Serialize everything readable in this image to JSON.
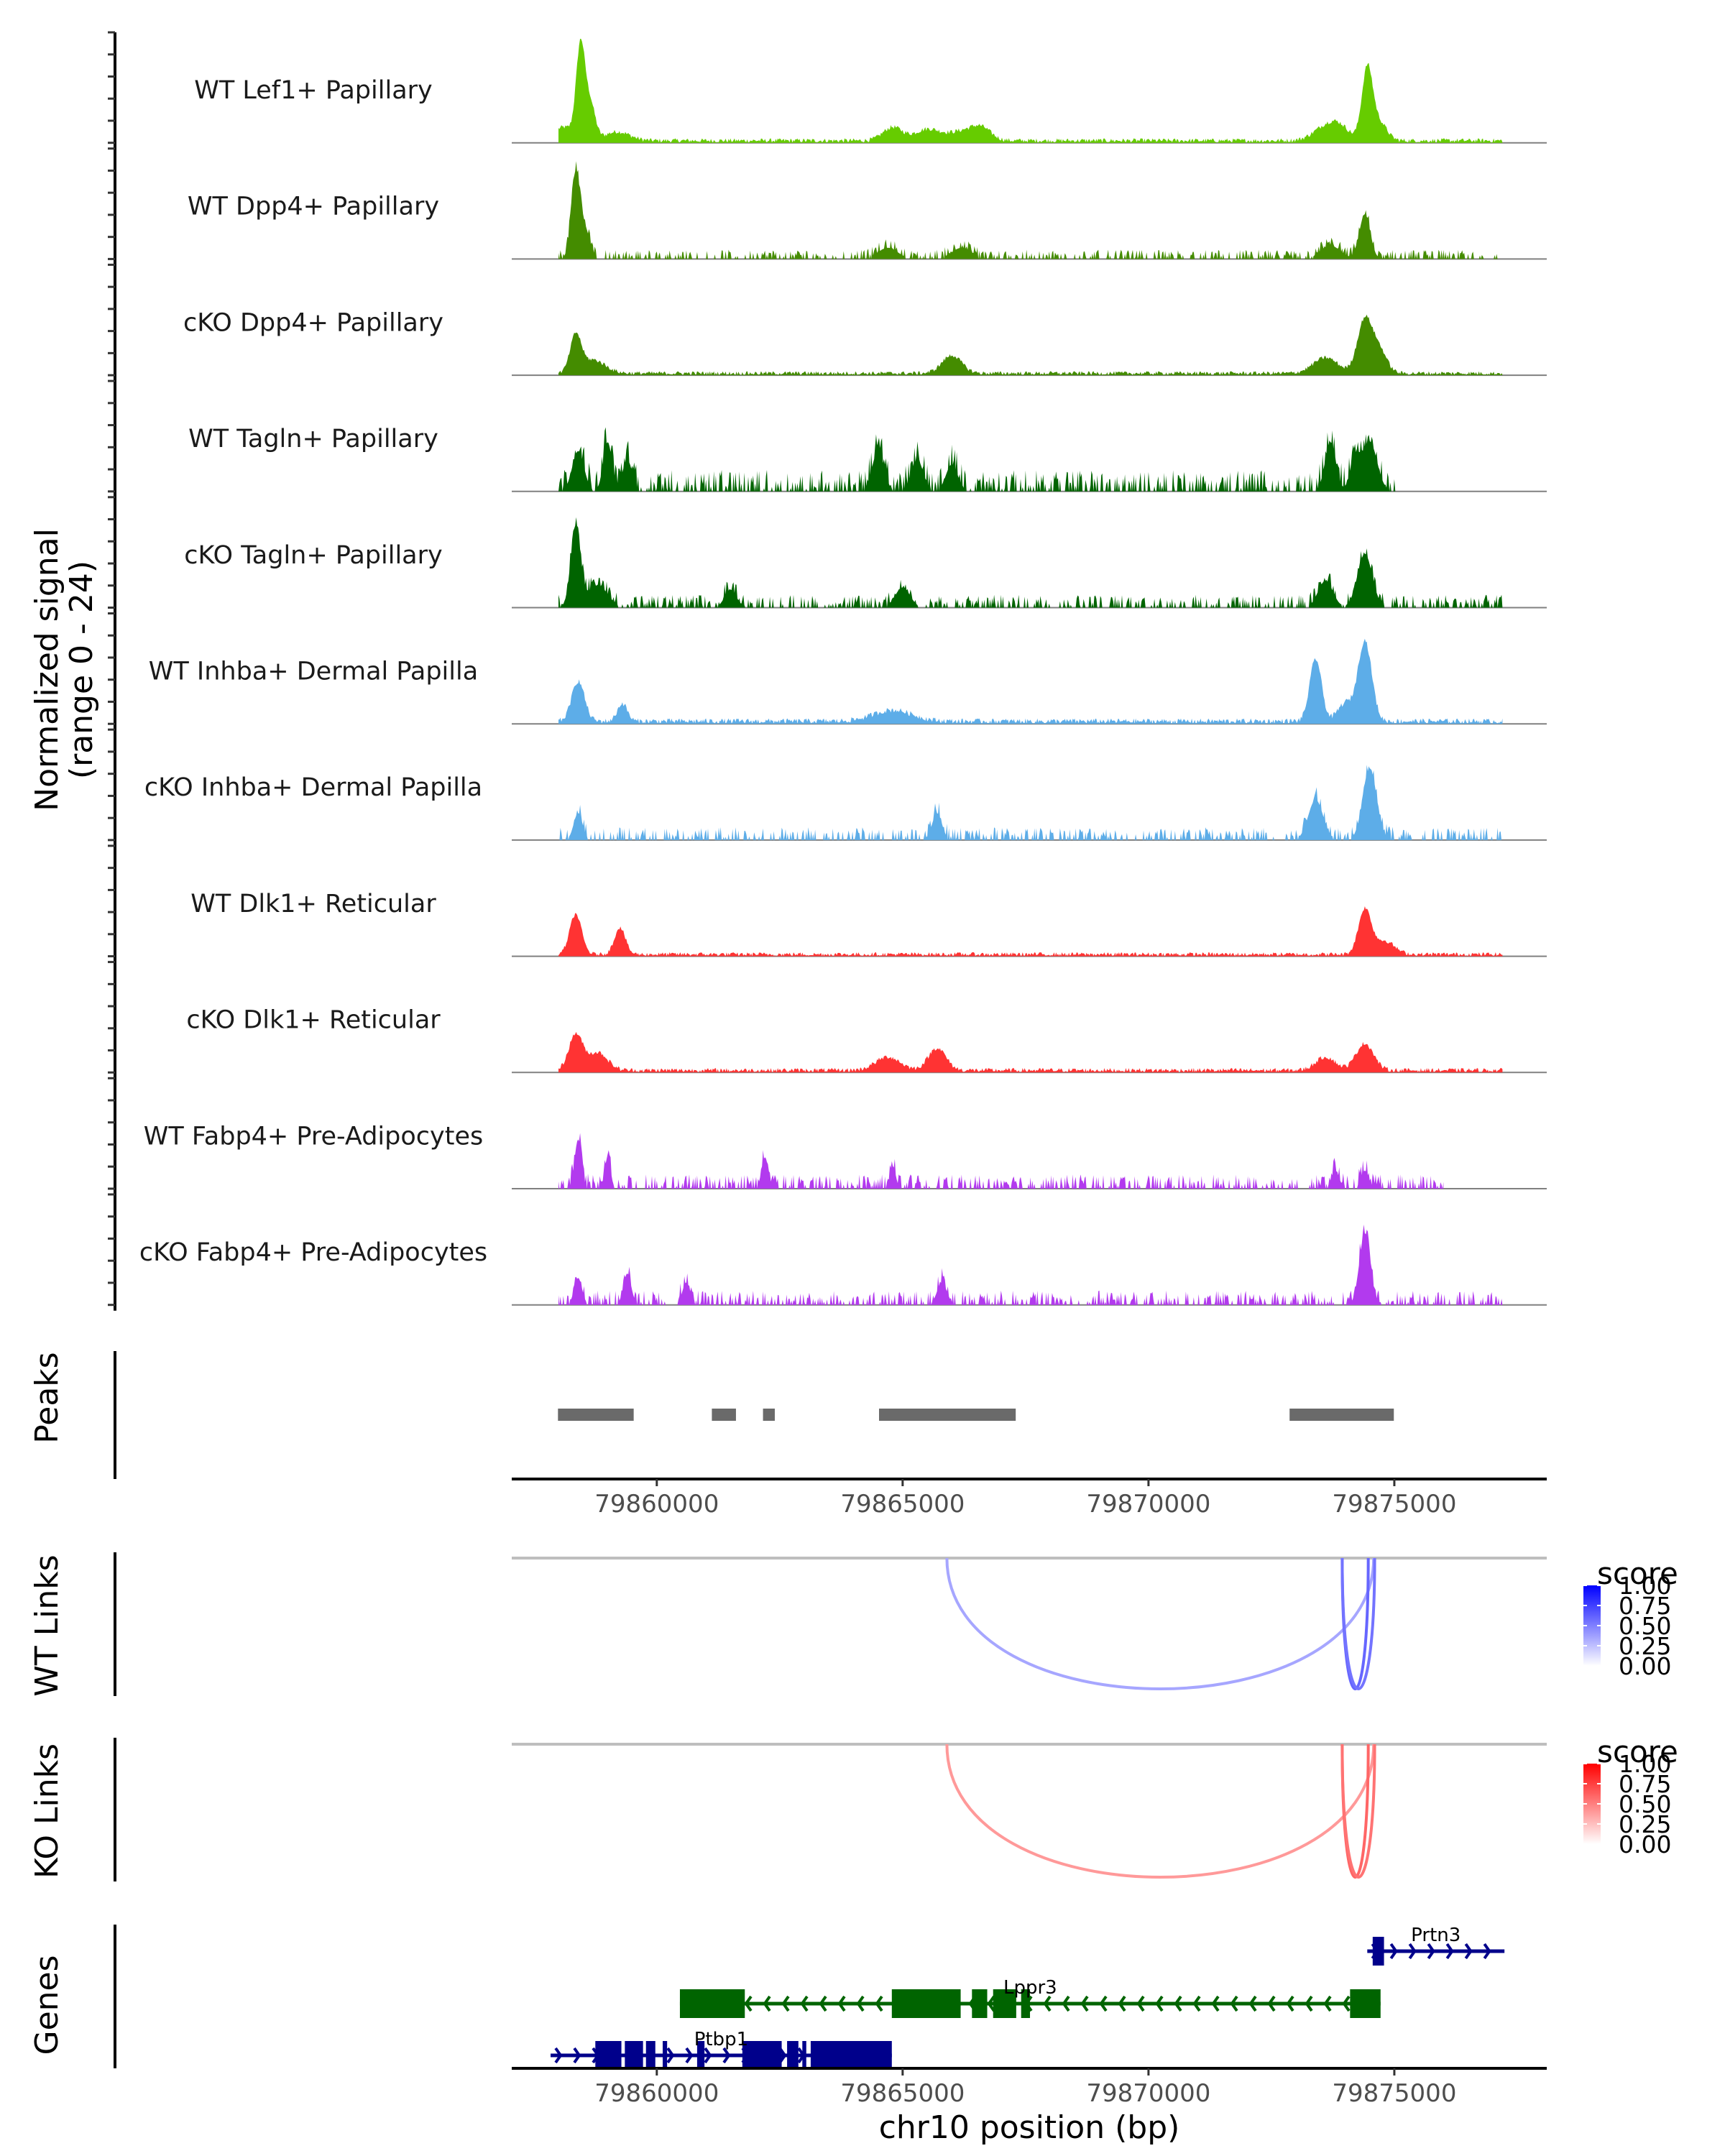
{
  "chart_data": {
    "type": "area",
    "title": "",
    "region": {
      "chromosome": "chr10",
      "start": 79857050,
      "end": 79878100
    },
    "xlabel": "chr10 position (bp)",
    "x_ticks": [
      79860000,
      79865000,
      79870000,
      79875000
    ],
    "x_tick_labels": [
      "79860000",
      "79865000",
      "79870000",
      "79875000"
    ],
    "coverage_ylabel": "Normalized signal",
    "coverage_ylabel_sub": "(range 0 - 24)",
    "coverage_ylim": [
      0,
      24
    ],
    "coverage_tracks": [
      {
        "name": "WT Lef1+ Papillary",
        "color": "#66CC00",
        "sparse": false,
        "peaks": [
          [
            79858450,
            21,
            90
          ],
          [
            79858650,
            8,
            100
          ],
          [
            79858100,
            3,
            200
          ],
          [
            79859200,
            2,
            250
          ],
          [
            79864800,
            3,
            200
          ],
          [
            79865500,
            2.5,
            250
          ],
          [
            79866600,
            2.5,
            200
          ],
          [
            79866200,
            2,
            300
          ],
          [
            79873600,
            3,
            250
          ],
          [
            79873900,
            2.5,
            200
          ],
          [
            79874450,
            16,
            110
          ],
          [
            79874700,
            4,
            150
          ]
        ],
        "noise": 1.0,
        "span": [
          79858000,
          79877200
        ]
      },
      {
        "name": "WT Dpp4+ Papillary",
        "color": "#448C00",
        "sparse": true,
        "peaks": [
          [
            79858350,
            19,
            90
          ],
          [
            79858550,
            6,
            100
          ],
          [
            79864700,
            2.5,
            200
          ],
          [
            79866200,
            2.5,
            200
          ],
          [
            79874400,
            10,
            110
          ],
          [
            79873700,
            3,
            200
          ]
        ],
        "noise": 1.3,
        "span": [
          79858000,
          79877200
        ]
      },
      {
        "name": "cKO Dpp4+ Papillary",
        "color": "#448C00",
        "sparse": false,
        "peaks": [
          [
            79858350,
            8,
            110
          ],
          [
            79858700,
            3,
            250
          ],
          [
            79866000,
            4,
            200
          ],
          [
            79873600,
            3.5,
            250
          ],
          [
            79874400,
            12,
            150
          ],
          [
            79874700,
            5,
            150
          ]
        ],
        "noise": 0.9,
        "span": [
          79858000,
          79877200
        ]
      },
      {
        "name": "WT Tagln+ Papillary",
        "color": "#006400",
        "sparse": true,
        "peaks": [
          [
            79858400,
            9,
            120
          ],
          [
            79859000,
            11,
            90
          ],
          [
            79859400,
            7,
            100
          ],
          [
            79864500,
            9,
            120
          ],
          [
            79865300,
            7,
            120
          ],
          [
            79866000,
            6,
            120
          ],
          [
            79873700,
            11,
            110
          ],
          [
            79874500,
            11,
            150
          ],
          [
            79874200,
            7,
            100
          ]
        ],
        "noise": 3.0,
        "span": [
          79858000,
          79875050
        ]
      },
      {
        "name": "cKO Tagln+ Papillary",
        "color": "#006400",
        "sparse": true,
        "peaks": [
          [
            79858350,
            18,
            100
          ],
          [
            79858800,
            5,
            200
          ],
          [
            79861500,
            4,
            120
          ],
          [
            79865000,
            4.5,
            150
          ],
          [
            79873600,
            6,
            150
          ],
          [
            79874400,
            12,
            150
          ]
        ],
        "noise": 1.8,
        "span": [
          79858000,
          79877200
        ]
      },
      {
        "name": "WT Inhba+ Dermal Papilla",
        "color": "#5DADE8",
        "sparse": false,
        "peaks": [
          [
            79858400,
            9,
            130
          ],
          [
            79859300,
            4,
            100
          ],
          [
            79864800,
            2.5,
            400
          ],
          [
            79873400,
            14,
            120
          ],
          [
            79874400,
            18,
            140
          ],
          [
            79874000,
            4,
            150
          ]
        ],
        "noise": 1.2,
        "span": [
          79858000,
          79877200
        ]
      },
      {
        "name": "cKO Inhba+ Dermal Papilla",
        "color": "#5DADE8",
        "sparse": true,
        "peaks": [
          [
            79858400,
            6,
            90
          ],
          [
            79865700,
            6,
            100
          ],
          [
            79873400,
            9,
            150
          ],
          [
            79874500,
            16,
            140
          ]
        ],
        "noise": 1.8,
        "span": [
          79858000,
          79877200
        ]
      },
      {
        "name": "WT Dlk1+ Reticular",
        "color": "#FF3333",
        "sparse": false,
        "peaks": [
          [
            79858350,
            9,
            120
          ],
          [
            79859250,
            6,
            110
          ],
          [
            79874400,
            10,
            130
          ],
          [
            79874800,
            3,
            200
          ]
        ],
        "noise": 0.9,
        "span": [
          79858000,
          79877200
        ]
      },
      {
        "name": "cKO Dlk1+ Reticular",
        "color": "#FF3333",
        "sparse": false,
        "peaks": [
          [
            79858350,
            8,
            140
          ],
          [
            79858800,
            4,
            200
          ],
          [
            79864700,
            3,
            250
          ],
          [
            79865700,
            5,
            180
          ],
          [
            79873600,
            3,
            200
          ],
          [
            79874400,
            6,
            180
          ]
        ],
        "noise": 1.0,
        "span": [
          79858000,
          79877200
        ]
      },
      {
        "name": "WT Fabp4+ Pre-Adipocytes",
        "color": "#B23AEE",
        "sparse": true,
        "peaks": [
          [
            79858400,
            11,
            70
          ],
          [
            79859000,
            7,
            60
          ],
          [
            79862200,
            7,
            70
          ],
          [
            79864800,
            5,
            60
          ],
          [
            79873800,
            4,
            80
          ],
          [
            79874400,
            4,
            80
          ]
        ],
        "noise": 2.0,
        "span": [
          79858000,
          79876000
        ]
      },
      {
        "name": "cKO Fabp4+ Pre-Adipocytes",
        "color": "#B23AEE",
        "sparse": true,
        "peaks": [
          [
            79858400,
            6,
            80
          ],
          [
            79859400,
            7,
            80
          ],
          [
            79860600,
            5,
            80
          ],
          [
            79865800,
            5,
            100
          ],
          [
            79874400,
            16,
            110
          ]
        ],
        "noise": 2.0,
        "span": [
          79858000,
          79877200
        ]
      }
    ],
    "peaks_track": {
      "label": "Peaks",
      "color": "#6A6A6A",
      "ranges": [
        [
          79857990,
          79859530
        ],
        [
          79861120,
          79861610
        ],
        [
          79862160,
          79862400
        ],
        [
          79864520,
          79867300
        ],
        [
          79872870,
          79874990
        ]
      ]
    },
    "links_tracks": [
      {
        "label": "WT Links",
        "palette": [
          "#FFFFFF",
          "#0000FF"
        ],
        "links": [
          {
            "start": 79865900,
            "end": 79874580,
            "score": 0.35
          },
          {
            "start": 79873940,
            "end": 79874470,
            "score": 0.6
          },
          {
            "start": 79873940,
            "end": 79874600,
            "score": 0.55
          }
        ],
        "legend": {
          "title": "score",
          "ticks": [
            "1.00",
            "0.75",
            "0.50",
            "0.25",
            "0.00"
          ]
        }
      },
      {
        "label": "KO Links",
        "palette": [
          "#FFFFFF",
          "#FF0000"
        ],
        "links": [
          {
            "start": 79865900,
            "end": 79874580,
            "score": 0.4
          },
          {
            "start": 79873940,
            "end": 79874470,
            "score": 0.6
          },
          {
            "start": 79873940,
            "end": 79874600,
            "score": 0.55
          }
        ],
        "legend": {
          "title": "score",
          "ticks": [
            "1.00",
            "0.75",
            "0.50",
            "0.25",
            "0.00"
          ]
        }
      }
    ],
    "genes_track": {
      "label": "Genes",
      "genes": [
        {
          "name": "Prtn3",
          "strand": "+",
          "color": "#00008B",
          "start": 79874450,
          "end": 79877240,
          "exons": [
            [
              79874560,
              79874790
            ]
          ]
        },
        {
          "name": "Lppr3",
          "strand": "-",
          "color": "#006400",
          "start": 79860470,
          "end": 79874720,
          "exons": [
            [
              79860470,
              79861790
            ],
            [
              79864780,
              79866180
            ],
            [
              79866410,
              79866720
            ],
            [
              79866840,
              79867310
            ],
            [
              79867410,
              79867590
            ],
            [
              79874100,
              79874720
            ]
          ]
        },
        {
          "name": "Ptbp1",
          "strand": "+",
          "color": "#00008B",
          "start": 79857840,
          "end": 79864780,
          "exons": [
            [
              79858750,
              79859280
            ],
            [
              79859350,
              79859720
            ],
            [
              79859780,
              79859970
            ],
            [
              79860120,
              79860210
            ],
            [
              79860820,
              79860970
            ],
            [
              79861740,
              79862540
            ],
            [
              79862650,
              79862880
            ],
            [
              79862960,
              79863040
            ],
            [
              79863130,
              79864780
            ]
          ]
        }
      ]
    }
  }
}
